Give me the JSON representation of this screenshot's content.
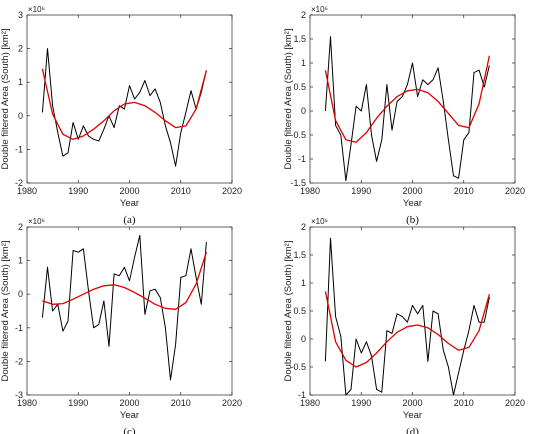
{
  "chart_data": [
    {
      "type": "line",
      "caption": "(a)",
      "exponent_label": "×10⁶",
      "xlabel": "Year",
      "ylabel": "Double filtered Area (South) [km²]",
      "xlim": [
        1980,
        2020
      ],
      "ylim": [
        -2,
        3
      ],
      "xticks": [
        1980,
        1990,
        2000,
        2010,
        2020
      ],
      "yticks": [
        -2,
        -1,
        0,
        1,
        2,
        3
      ],
      "grid": false,
      "series": [
        {
          "color": "#000000",
          "x": [
            1983,
            1984,
            1985,
            1986,
            1987,
            1988,
            1989,
            1990,
            1991,
            1992,
            1993,
            1994,
            1995,
            1996,
            1997,
            1998,
            1999,
            2000,
            2001,
            2002,
            2003,
            2004,
            2005,
            2006,
            2007,
            2008,
            2009,
            2010,
            2011,
            2012,
            2013,
            2014,
            2015
          ],
          "y": [
            0.1,
            2.0,
            0.3,
            -0.5,
            -1.2,
            -1.1,
            -0.2,
            -0.7,
            -0.3,
            -0.6,
            -0.7,
            -0.75,
            -0.4,
            0.0,
            -0.35,
            0.3,
            0.2,
            0.9,
            0.5,
            0.7,
            1.05,
            0.6,
            0.8,
            0.4,
            -0.3,
            -0.8,
            -1.5,
            -0.5,
            0.1,
            0.75,
            0.2,
            0.7,
            1.35
          ]
        },
        {
          "color": "#e00000",
          "x": [
            1983,
            1985,
            1987,
            1989,
            1991,
            1993,
            1995,
            1997,
            1999,
            2001,
            2003,
            2005,
            2007,
            2009,
            2011,
            2013,
            2015
          ],
          "y": [
            1.4,
            0.05,
            -0.55,
            -0.7,
            -0.6,
            -0.4,
            -0.15,
            0.15,
            0.35,
            0.4,
            0.3,
            0.1,
            -0.15,
            -0.35,
            -0.3,
            0.2,
            1.35
          ]
        }
      ]
    },
    {
      "type": "line",
      "caption": "(b)",
      "exponent_label": "×10⁶",
      "xlabel": "Year",
      "ylabel": "Double filtered Area (South) [km²]",
      "xlim": [
        1980,
        2020
      ],
      "ylim": [
        -1.5,
        2
      ],
      "xticks": [
        1980,
        1990,
        2000,
        2010,
        2020
      ],
      "yticks": [
        -1.5,
        -1,
        -0.5,
        0,
        0.5,
        1,
        1.5,
        2
      ],
      "grid": false,
      "series": [
        {
          "color": "#000000",
          "x": [
            1983,
            1984,
            1985,
            1986,
            1987,
            1988,
            1989,
            1990,
            1991,
            1992,
            1993,
            1994,
            1995,
            1996,
            1997,
            1998,
            1999,
            2000,
            2001,
            2002,
            2003,
            2004,
            2005,
            2006,
            2007,
            2008,
            2009,
            2010,
            2011,
            2012,
            2013,
            2014,
            2015
          ],
          "y": [
            0.0,
            1.55,
            -0.3,
            -0.5,
            -1.45,
            -0.7,
            0.1,
            0.0,
            0.55,
            -0.5,
            -1.05,
            -0.6,
            0.55,
            -0.4,
            0.2,
            0.3,
            0.55,
            1.0,
            0.3,
            0.65,
            0.55,
            0.65,
            0.9,
            0.2,
            -0.6,
            -1.35,
            -1.4,
            -0.6,
            -0.45,
            0.8,
            0.85,
            0.5,
            0.95
          ]
        },
        {
          "color": "#e00000",
          "x": [
            1983,
            1985,
            1987,
            1989,
            1991,
            1993,
            1995,
            1997,
            1999,
            2001,
            2003,
            2005,
            2007,
            2009,
            2011,
            2013,
            2015
          ],
          "y": [
            0.85,
            -0.2,
            -0.6,
            -0.65,
            -0.45,
            -0.15,
            0.1,
            0.3,
            0.42,
            0.45,
            0.38,
            0.2,
            -0.05,
            -0.3,
            -0.35,
            0.15,
            1.15
          ]
        }
      ]
    },
    {
      "type": "line",
      "caption": "(c)",
      "exponent_label": "×10⁶",
      "xlabel": "Year",
      "ylabel": "Double filtered Area (South) [km²]",
      "xlim": [
        1980,
        2020
      ],
      "ylim": [
        -3,
        2
      ],
      "xticks": [
        1980,
        1990,
        2000,
        2010,
        2020
      ],
      "yticks": [
        -3,
        -2,
        -1,
        0,
        1,
        2
      ],
      "grid": false,
      "series": [
        {
          "color": "#000000",
          "x": [
            1983,
            1984,
            1985,
            1986,
            1987,
            1988,
            1989,
            1990,
            1991,
            1992,
            1993,
            1994,
            1995,
            1996,
            1997,
            1998,
            1999,
            2000,
            2001,
            2002,
            2003,
            2004,
            2005,
            2006,
            2007,
            2008,
            2009,
            2010,
            2011,
            2012,
            2013,
            2014,
            2015
          ],
          "y": [
            -0.7,
            0.8,
            -0.5,
            -0.3,
            -1.1,
            -0.8,
            1.3,
            1.25,
            1.35,
            0.1,
            -1.0,
            -0.9,
            -0.2,
            -1.55,
            0.6,
            0.55,
            0.8,
            0.4,
            1.1,
            1.75,
            -0.6,
            0.1,
            0.15,
            -0.1,
            -1.0,
            -2.55,
            -1.5,
            0.5,
            0.55,
            1.35,
            0.5,
            -0.3,
            1.55
          ]
        },
        {
          "color": "#e00000",
          "x": [
            1983,
            1985,
            1987,
            1989,
            1991,
            1993,
            1995,
            1997,
            1999,
            2001,
            2003,
            2005,
            2007,
            2009,
            2011,
            2013,
            2015
          ],
          "y": [
            -0.2,
            -0.3,
            -0.28,
            -0.15,
            0.0,
            0.15,
            0.25,
            0.28,
            0.2,
            0.05,
            -0.12,
            -0.3,
            -0.42,
            -0.45,
            -0.25,
            0.3,
            1.25
          ]
        }
      ]
    },
    {
      "type": "line",
      "caption": "(d)",
      "exponent_label": "×10⁶",
      "xlabel": "Year",
      "ylabel": "Double filtered Area (South) [km²]",
      "xlim": [
        1980,
        2020
      ],
      "ylim": [
        -1,
        2
      ],
      "xticks": [
        1980,
        1990,
        2000,
        2010,
        2020
      ],
      "yticks": [
        -1,
        -0.5,
        0,
        0.5,
        1,
        1.5,
        2
      ],
      "grid": false,
      "series": [
        {
          "color": "#000000",
          "x": [
            1983,
            1984,
            1985,
            1986,
            1987,
            1988,
            1989,
            1990,
            1991,
            1992,
            1993,
            1994,
            1995,
            1996,
            1997,
            1998,
            1999,
            2000,
            2001,
            2002,
            2003,
            2004,
            2005,
            2006,
            2007,
            2008,
            2009,
            2010,
            2011,
            2012,
            2013,
            2014,
            2015
          ],
          "y": [
            -0.4,
            1.8,
            0.4,
            0.05,
            -1.0,
            -0.9,
            0.0,
            -0.25,
            -0.05,
            -0.3,
            -0.9,
            -0.95,
            0.15,
            0.1,
            0.45,
            0.4,
            0.3,
            0.6,
            0.45,
            0.6,
            -0.4,
            0.5,
            0.45,
            -0.2,
            -0.5,
            -1.0,
            -0.6,
            -0.2,
            0.15,
            0.6,
            0.3,
            0.3,
            0.75
          ]
        },
        {
          "color": "#e00000",
          "x": [
            1983,
            1985,
            1987,
            1989,
            1991,
            1993,
            1995,
            1997,
            1999,
            2001,
            2003,
            2005,
            2007,
            2009,
            2011,
            2013,
            2015
          ],
          "y": [
            0.85,
            -0.05,
            -0.38,
            -0.5,
            -0.42,
            -0.25,
            -0.05,
            0.12,
            0.22,
            0.25,
            0.2,
            0.08,
            -0.08,
            -0.2,
            -0.15,
            0.15,
            0.8
          ]
        }
      ]
    }
  ]
}
